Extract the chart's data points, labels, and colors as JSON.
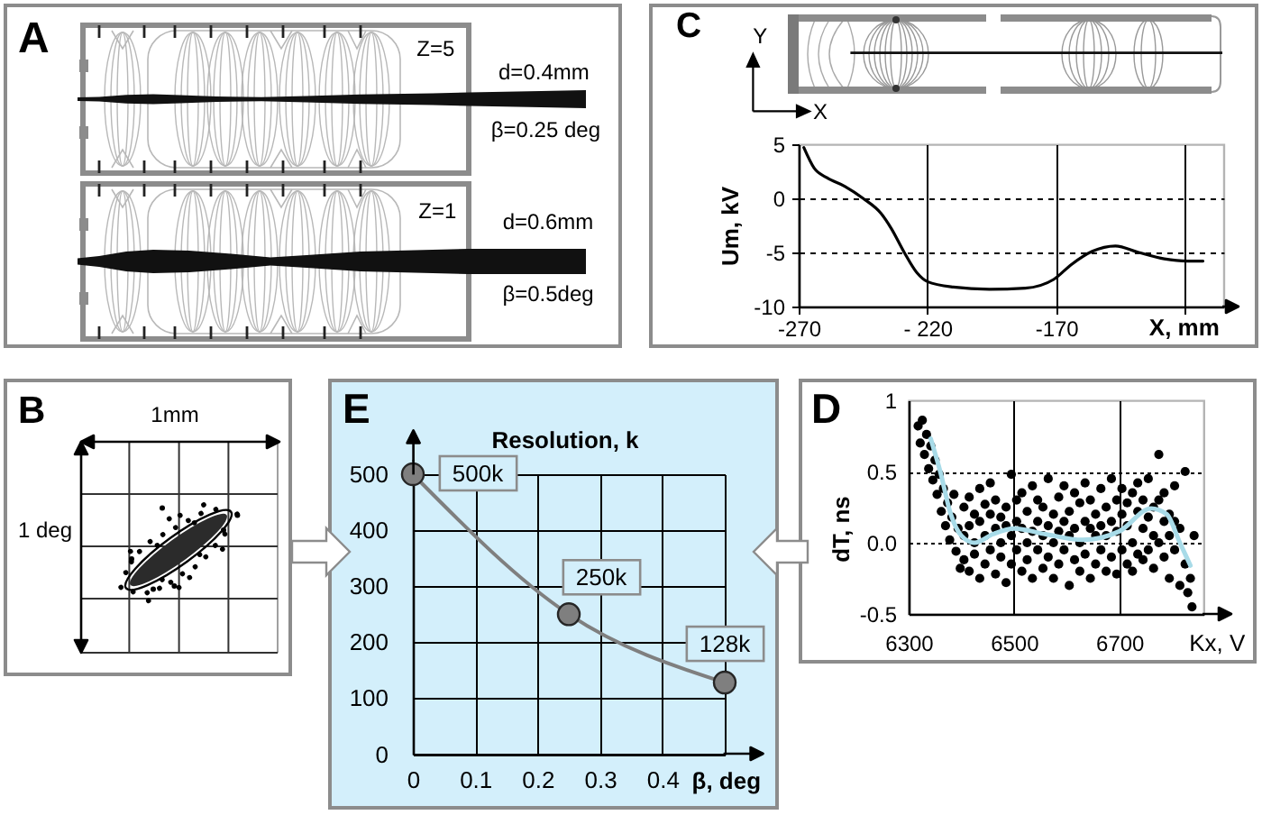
{
  "chart_data": [
    {
      "type": "other",
      "title": "A",
      "annotations": [
        "Z=5",
        "d=0.4mm",
        "β=0.25 deg",
        "Z=1",
        "d=0.6mm",
        "β=0.5deg"
      ]
    },
    {
      "type": "line",
      "title": "C",
      "annotations": [
        "Y",
        "X"
      ],
      "xlabel": "X, mm",
      "ylabel": "Um, kV",
      "x": [
        -268,
        -264,
        -259,
        -252,
        -245,
        -238,
        -234,
        -229,
        -224,
        -220,
        -210,
        -196,
        -182,
        -171,
        -164,
        -156,
        -147,
        -138,
        -128,
        -119,
        -113
      ],
      "series": [
        {
          "color": "#000000",
          "values": [
            4.7,
            2.8,
            1.9,
            1.1,
            0,
            -1.4,
            -2.8,
            -5,
            -6.9,
            -7.7,
            -8.2,
            -8.4,
            -8.3,
            -7.5,
            -6.1,
            -4.9,
            -4.4,
            -5,
            -5.6,
            -5.8,
            -5.8
          ]
        }
      ],
      "xlim": [
        -270,
        -105
      ],
      "xticks": [
        -270,
        {
          "value": -220,
          "label": "- 220"
        },
        -170,
        {
          "value": -120,
          "label": null
        }
      ],
      "ylim": [
        -10,
        5
      ],
      "yticks": [
        -10,
        -5,
        0,
        5
      ],
      "grid": true
    },
    {
      "type": "other",
      "title": "B",
      "annotations": [
        "1mm",
        "1 deg"
      ]
    },
    {
      "type": "line",
      "title": "E",
      "xlabel": "β, deg",
      "ylabel": "Resolution, k",
      "x": [
        0,
        0.25,
        0.5
      ],
      "series": [
        {
          "color": "#7f7f7f",
          "values": [
            500,
            250,
            128
          ],
          "value_labels": [
            "500k",
            "250k",
            "128k"
          ]
        }
      ],
      "xlim": [
        0,
        0.5
      ],
      "xticks": [
        0,
        0.1,
        0.2,
        0.3,
        0.4,
        {
          "value": 0.5,
          "label": null
        }
      ],
      "ylim": [
        0,
        500
      ],
      "yticks": [
        0,
        100,
        200,
        300,
        400,
        500
      ],
      "grid": true,
      "marker": "circle"
    },
    {
      "type": "scatter",
      "title": "D",
      "xlabel": "Kx, V",
      "ylabel": "dT, ns",
      "series": [
        {
          "color": "#000000",
          "x": [
            6318,
            6322,
            6326,
            6330,
            6334,
            6338,
            6342,
            6346,
            6350,
            6354,
            6358,
            6362,
            6366,
            6370,
            6374,
            6378,
            6382,
            6386,
            6390,
            6394,
            6398,
            6405,
            6405,
            6405,
            6415,
            6415,
            6415,
            6425,
            6425,
            6425,
            6435,
            6435,
            6435,
            6445,
            6445,
            6445,
            6455,
            6455,
            6455,
            6465,
            6465,
            6465,
            6475,
            6475,
            6475,
            6485,
            6485,
            6485,
            6495,
            6495,
            6495,
            6505,
            6505,
            6505,
            6515,
            6515,
            6515,
            6525,
            6525,
            6525,
            6535,
            6535,
            6535,
            6545,
            6545,
            6545,
            6555,
            6555,
            6555,
            6565,
            6565,
            6565,
            6575,
            6575,
            6575,
            6585,
            6585,
            6585,
            6595,
            6595,
            6595,
            6605,
            6605,
            6605,
            6615,
            6615,
            6615,
            6625,
            6625,
            6625,
            6635,
            6635,
            6635,
            6645,
            6645,
            6645,
            6655,
            6655,
            6655,
            6665,
            6665,
            6665,
            6675,
            6675,
            6675,
            6685,
            6685,
            6685,
            6695,
            6695,
            6695,
            6705,
            6705,
            6705,
            6715,
            6715,
            6715,
            6725,
            6725,
            6725,
            6735,
            6735,
            6735,
            6745,
            6745,
            6745,
            6755,
            6755,
            6755,
            6765,
            6765,
            6765,
            6775,
            6775,
            6775,
            6785,
            6785,
            6785,
            6795,
            6795,
            6795,
            6805,
            6805,
            6805,
            6815,
            6815,
            6825,
            6825,
            6830,
            6835,
            6838,
            6842
          ],
          "values": [
            0.82,
            0.7,
            0.86,
            0.62,
            0.76,
            0.52,
            0.68,
            0.44,
            0.58,
            0.34,
            0.48,
            0.22,
            0.38,
            0.12,
            0.28,
            0.02,
            0.18,
            0.34,
            -0.06,
            0.1,
            -0.18,
            -0.12,
            0.05,
            0.25,
            -0.2,
            0.12,
            0.32,
            0,
            -0.08,
            0.2,
            -0.25,
            0.15,
            0.38,
            0.05,
            -0.15,
            0.27,
            -0.05,
            0.2,
            0.42,
            -0.22,
            0.1,
            0.3,
            0,
            -0.1,
            0.18,
            0.25,
            -0.28,
            0.12,
            0.05,
            0.48,
            -0.15,
            0.3,
            -0.05,
            0.15,
            -0.2,
            0.1,
            0.35,
            0,
            0.22,
            -0.12,
            0.4,
            -0.25,
            0.08,
            0.15,
            -0.05,
            0.3,
            -0.18,
            0.05,
            0.25,
            0.45,
            -0.1,
            0.12,
            -0.25,
            0,
            0.2,
            0.32,
            -0.15,
            0.08,
            -0.05,
            0.15,
            0.4,
            -0.3,
            0.05,
            0.22,
            0.1,
            -0.12,
            0.35,
            -0.2,
            0,
            0.28,
            0.15,
            -0.08,
            0.42,
            -0.25,
            0.1,
            0.3,
            0.05,
            -0.15,
            0.2,
            0.38,
            -0.05,
            0.12,
            -0.2,
            0.25,
            0.05,
            0.15,
            -0.1,
            0.45,
            -0.22,
            0.08,
            0.3,
            0.2,
            -0.05,
            0.38,
            -0.15,
            0.12,
            0.28,
            0,
            0.35,
            -0.2,
            0.22,
            -0.08,
            0.42,
            0.1,
            0.3,
            -0.12,
            0.18,
            0.45,
            -0.05,
            0.25,
            0.05,
            -0.18,
            0.62,
            0.3,
            0,
            0.15,
            -0.1,
            0.35,
            0.2,
            -0.25,
            0.05,
            0.4,
            -0.05,
            0.15,
            -0.3,
            0.1,
            -0.15,
            0.5,
            -0.35,
            -0.25,
            -0.45,
            0.05
          ]
        },
        {
          "type": "line",
          "color": "#a8dbe8",
          "marker": "none",
          "x": [
            6342,
            6360,
            6380,
            6400,
            6425,
            6460,
            6500,
            6560,
            6630,
            6700,
            6760,
            6790,
            6815,
            6835
          ],
          "values": [
            0.73,
            0.5,
            0.2,
            0.05,
            0,
            0.06,
            0.1,
            0.06,
            0.02,
            0.08,
            0.24,
            0.2,
            0,
            -0.16
          ]
        }
      ],
      "xlim": [
        6300,
        6860
      ],
      "xticks": [
        6300,
        6500,
        6700
      ],
      "ylim": [
        -0.5,
        1
      ],
      "yticks": [
        -0.5,
        {
          "value": 0,
          "label": "0.0"
        },
        0.5,
        1
      ],
      "grid": true,
      "marker": "circle"
    }
  ]
}
